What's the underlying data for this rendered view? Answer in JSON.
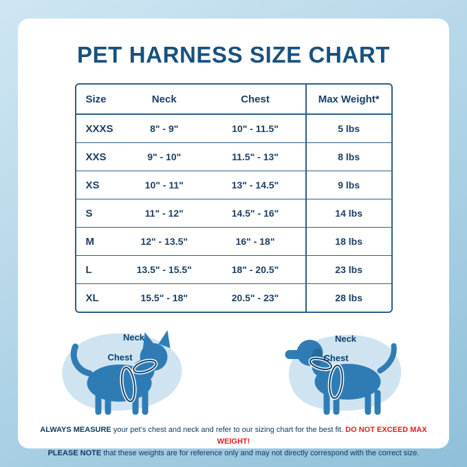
{
  "title": "PET HARNESS SIZE CHART",
  "chart_data": {
    "type": "table",
    "title": "PET HARNESS SIZE CHART",
    "columns": [
      "Size",
      "Neck",
      "Chest",
      "Max Weight*"
    ],
    "rows": [
      [
        "XXXS",
        "8\" - 9\"",
        "10\" - 11.5\"",
        "5 lbs"
      ],
      [
        "XXS",
        "9\" - 10\"",
        "11.5\" - 13\"",
        "8 lbs"
      ],
      [
        "XS",
        "10\" - 11\"",
        "13\" - 14.5\"",
        "9 lbs"
      ],
      [
        "S",
        "11\" - 12\"",
        "14.5\" - 16\"",
        "14 lbs"
      ],
      [
        "M",
        "12\" - 13.5\"",
        "16\" - 18\"",
        "18 lbs"
      ],
      [
        "L",
        "13.5\" - 15.5\"",
        "18\" - 20.5\"",
        "23 lbs"
      ],
      [
        "XL",
        "15.5\" - 18\"",
        "20.5\" - 23\"",
        "28 lbs"
      ]
    ]
  },
  "diagram": {
    "cat": {
      "neck_label": "Neck",
      "chest_label": "Chest"
    },
    "dog": {
      "neck_label": "Neck",
      "chest_label": "Chest"
    }
  },
  "footer": {
    "measure_bold": "ALWAYS MEASURE",
    "measure_text": " your pet’s chest and neck and refer to our sizing chart for the best fit. ",
    "warning": "DO NOT EXCEED MAX WEIGHT!",
    "note_bold": "PLEASE NOTE",
    "note_text": " that these weights are for reference only and may not directly correspond with the correct size."
  },
  "colors": {
    "title_navy": "#19517f",
    "table_navy": "#1c3f63",
    "border_navy": "#2b5d87",
    "warning_red": "#e11d1d",
    "silhouette_blue": "#2f7cb5",
    "blob_blue": "#cfe4f0"
  }
}
